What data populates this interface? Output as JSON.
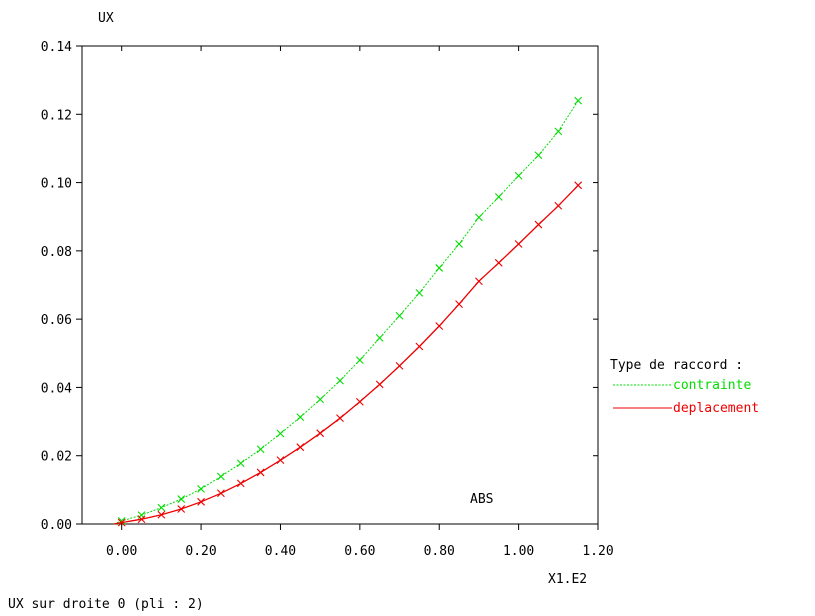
{
  "chart_data": {
    "type": "line",
    "ylabel": "UX",
    "xlabel": "ABS",
    "x_scale_label": "X1.E2",
    "footer": "UX sur droite 0 (pli : 2)",
    "xlim": [
      -0.1,
      1.2
    ],
    "ylim": [
      0.0,
      0.14
    ],
    "x_ticks": [
      "0.00",
      "0.20",
      "0.40",
      "0.60",
      "0.80",
      "1.00",
      "1.20"
    ],
    "y_ticks": [
      "0.00",
      "0.02",
      "0.04",
      "0.06",
      "0.08",
      "0.10",
      "0.12",
      "0.14"
    ],
    "grid": false,
    "legend": {
      "title": "Type de raccord :",
      "placement": "right"
    },
    "series": [
      {
        "name": "contrainte",
        "color": "#00dd00",
        "line_style": "dotted",
        "x": [
          0.0,
          0.05,
          0.1,
          0.15,
          0.2,
          0.25,
          0.3,
          0.35,
          0.4,
          0.45,
          0.5,
          0.55,
          0.6,
          0.65,
          0.7,
          0.75,
          0.8,
          0.85,
          0.9,
          0.95,
          1.0,
          1.05,
          1.1,
          1.15
        ],
        "y": [
          0.0009,
          0.0026,
          0.0048,
          0.0073,
          0.0103,
          0.0139,
          0.0178,
          0.0219,
          0.0265,
          0.0313,
          0.0365,
          0.042,
          0.048,
          0.0545,
          0.061,
          0.0677,
          0.075,
          0.082,
          0.0898,
          0.0958,
          0.102,
          0.108,
          0.115,
          0.124
        ]
      },
      {
        "name": "deplacement",
        "color": "#ee0000",
        "line_style": "solid",
        "x": [
          0.0,
          0.05,
          0.1,
          0.15,
          0.2,
          0.25,
          0.3,
          0.35,
          0.4,
          0.45,
          0.5,
          0.55,
          0.6,
          0.65,
          0.7,
          0.75,
          0.8,
          0.85,
          0.9,
          0.95,
          1.0,
          1.05,
          1.1,
          1.15
        ],
        "y": [
          0.0004,
          0.0014,
          0.0027,
          0.0044,
          0.0065,
          0.009,
          0.0119,
          0.0151,
          0.0187,
          0.0225,
          0.0266,
          0.031,
          0.0358,
          0.0409,
          0.0463,
          0.052,
          0.058,
          0.0644,
          0.0711,
          0.0765,
          0.082,
          0.0877,
          0.0932,
          0.0992
        ]
      }
    ]
  }
}
